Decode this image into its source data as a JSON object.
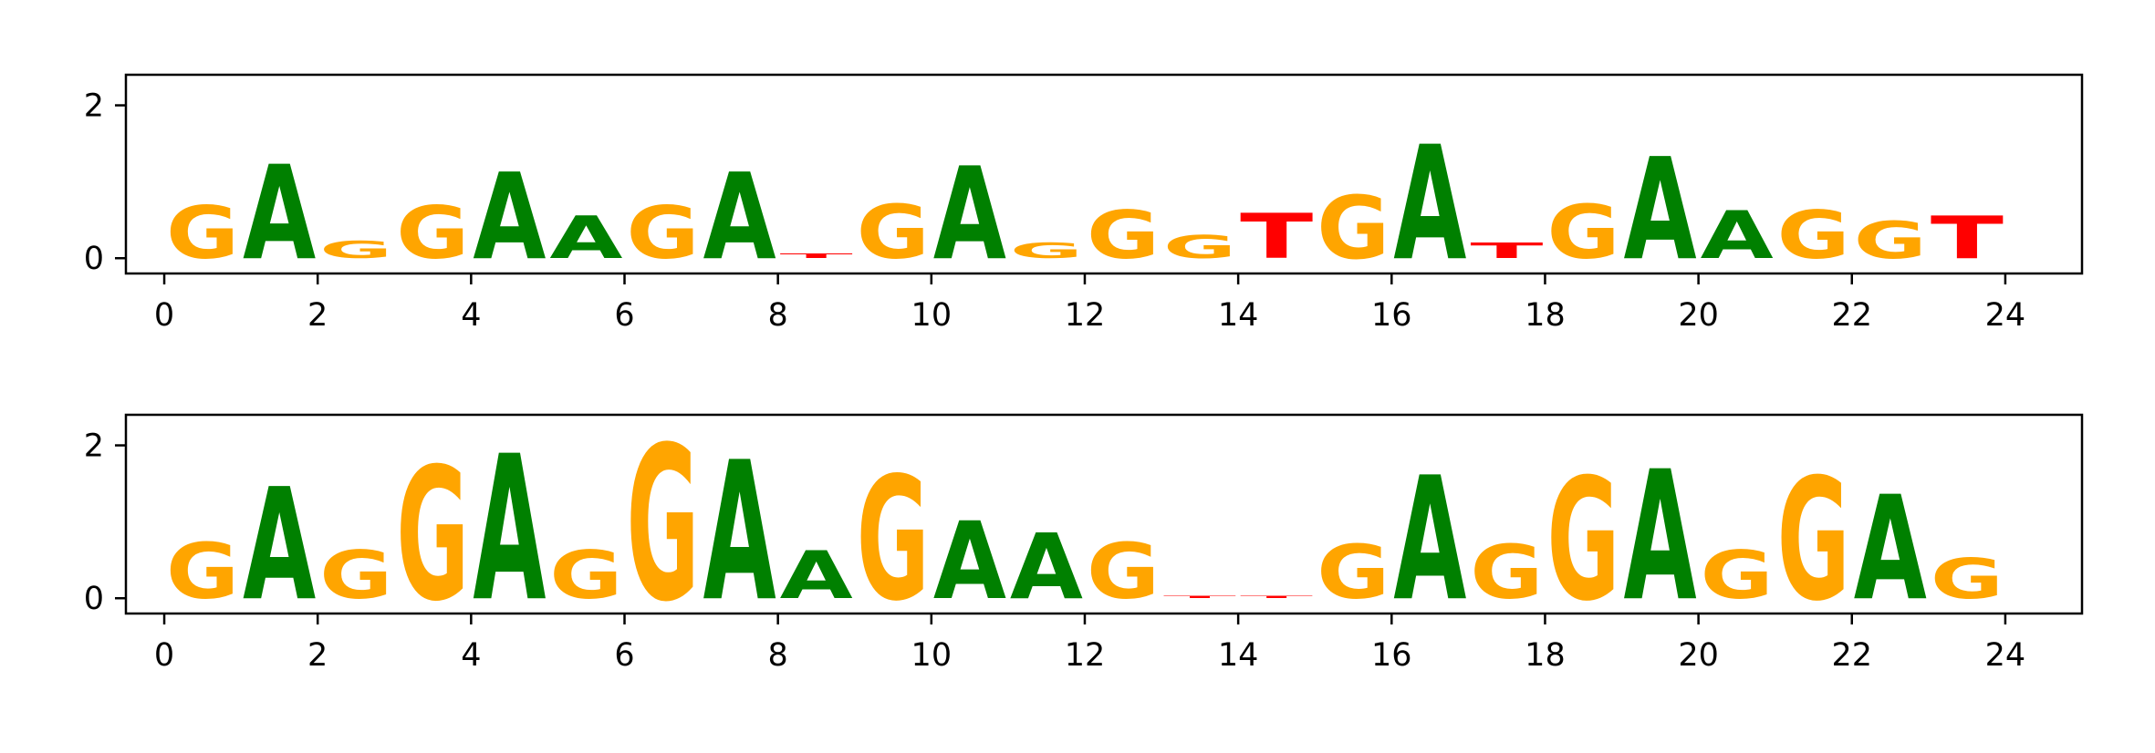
{
  "chart_data": [
    {
      "type": "sequence-logo",
      "xlim": [
        -0.5,
        25.0
      ],
      "ylim": [
        -0.2,
        2.4
      ],
      "x_ticks": [
        "0",
        "2",
        "4",
        "6",
        "8",
        "10",
        "12",
        "14",
        "16",
        "18",
        "20",
        "22",
        "24"
      ],
      "y_ticks": [
        "0",
        "2"
      ],
      "positions": [
        {
          "x": 0.5,
          "letters": {
            "G": 0.68
          }
        },
        {
          "x": 1.5,
          "letters": {
            "A": 1.22
          }
        },
        {
          "x": 2.5,
          "letters": {
            "G": 0.22
          }
        },
        {
          "x": 3.5,
          "letters": {
            "G": 0.68
          }
        },
        {
          "x": 4.5,
          "letters": {
            "A": 1.12
          }
        },
        {
          "x": 5.5,
          "letters": {
            "A": 0.55
          }
        },
        {
          "x": 6.5,
          "letters": {
            "G": 0.68
          }
        },
        {
          "x": 7.5,
          "letters": {
            "A": 1.12
          }
        },
        {
          "x": 8.5,
          "letters": {
            "T": 0.06
          }
        },
        {
          "x": 9.5,
          "letters": {
            "G": 0.7
          }
        },
        {
          "x": 10.5,
          "letters": {
            "A": 1.2
          }
        },
        {
          "x": 11.5,
          "letters": {
            "G": 0.2
          }
        },
        {
          "x": 12.5,
          "letters": {
            "G": 0.62
          }
        },
        {
          "x": 13.5,
          "letters": {
            "G": 0.3
          }
        },
        {
          "x": 14.5,
          "letters": {
            "T": 0.58
          }
        },
        {
          "x": 15.5,
          "letters": {
            "G": 0.82
          }
        },
        {
          "x": 16.5,
          "letters": {
            "A": 1.48
          }
        },
        {
          "x": 17.5,
          "letters": {
            "T": 0.2
          }
        },
        {
          "x": 18.5,
          "letters": {
            "G": 0.7
          }
        },
        {
          "x": 19.5,
          "letters": {
            "A": 1.32
          }
        },
        {
          "x": 20.5,
          "letters": {
            "A": 0.62
          }
        },
        {
          "x": 21.5,
          "letters": {
            "G": 0.62
          }
        },
        {
          "x": 22.5,
          "letters": {
            "G": 0.48
          }
        },
        {
          "x": 23.5,
          "letters": {
            "T": 0.55
          }
        }
      ]
    },
    {
      "type": "sequence-logo",
      "xlim": [
        -0.5,
        25.0
      ],
      "ylim": [
        -0.2,
        2.4
      ],
      "x_ticks": [
        "0",
        "2",
        "4",
        "6",
        "8",
        "10",
        "12",
        "14",
        "16",
        "18",
        "20",
        "22",
        "24"
      ],
      "y_ticks": [
        "0",
        "2"
      ],
      "positions": [
        {
          "x": 0.5,
          "letters": {
            "G": 0.72
          }
        },
        {
          "x": 1.5,
          "letters": {
            "A": 1.45
          }
        },
        {
          "x": 2.5,
          "letters": {
            "G": 0.62
          }
        },
        {
          "x": 3.5,
          "letters": {
            "G": 1.72
          }
        },
        {
          "x": 4.5,
          "letters": {
            "A": 1.88
          }
        },
        {
          "x": 5.5,
          "letters": {
            "G": 0.62
          }
        },
        {
          "x": 6.5,
          "letters": {
            "G": 2.0
          }
        },
        {
          "x": 7.5,
          "letters": {
            "A": 1.8
          }
        },
        {
          "x": 8.5,
          "letters": {
            "A": 0.62
          }
        },
        {
          "x": 9.5,
          "letters": {
            "G": 1.6
          }
        },
        {
          "x": 10.5,
          "letters": {
            "A": 1.0
          }
        },
        {
          "x": 11.5,
          "letters": {
            "A": 0.85
          }
        },
        {
          "x": 12.5,
          "letters": {
            "G": 0.72
          }
        },
        {
          "x": 13.5,
          "letters": {
            "T": 0.03
          }
        },
        {
          "x": 14.5,
          "letters": {
            "T": 0.03
          }
        },
        {
          "x": 15.5,
          "letters": {
            "G": 0.7
          }
        },
        {
          "x": 16.5,
          "letters": {
            "A": 1.6
          }
        },
        {
          "x": 17.5,
          "letters": {
            "G": 0.7
          }
        },
        {
          "x": 18.5,
          "letters": {
            "G": 1.58
          }
        },
        {
          "x": 19.5,
          "letters": {
            "A": 1.68
          }
        },
        {
          "x": 20.5,
          "letters": {
            "G": 0.62
          }
        },
        {
          "x": 21.5,
          "letters": {
            "G": 1.58
          }
        },
        {
          "x": 22.5,
          "letters": {
            "A": 1.35
          }
        },
        {
          "x": 23.5,
          "letters": {
            "G": 0.52
          }
        }
      ]
    }
  ],
  "colors": {
    "A": "#008000",
    "C": "#0000ff",
    "G": "#ffa500",
    "T": "#ff0000",
    "axis": "#000000"
  }
}
